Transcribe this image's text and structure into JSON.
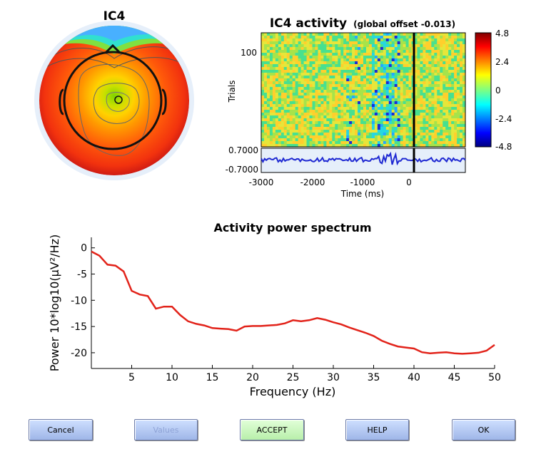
{
  "topo": {
    "title": "IC4"
  },
  "erp": {
    "title_main": "IC4 activity",
    "title_sub": "(global offset -0.013)",
    "ylabel": "Trials",
    "trial_tick": "100",
    "trial_tick_bottom": "0.7000",
    "trace_tick_top": "0.7000",
    "trace_tick_bottom": "-0.7000",
    "xlabel": "Time (ms)",
    "xticks": [
      "-3000",
      "-2000",
      "-1000",
      "0"
    ]
  },
  "colorbar": {
    "ticks": [
      "4.8",
      "2.4",
      "0",
      "-2.4",
      "-4.8"
    ]
  },
  "chart_data": {
    "type": "line",
    "title": "Activity power spectrum",
    "xlabel": "Frequency (Hz)",
    "ylabel": "Power 10*log10(µV²/Hz)",
    "xlim": [
      0,
      50
    ],
    "ylim": [
      -23,
      2
    ],
    "xticks": [
      "5",
      "10",
      "15",
      "20",
      "25",
      "30",
      "35",
      "40",
      "45",
      "50"
    ],
    "yticks": [
      "0",
      "-5",
      "-10",
      "-15",
      "-20"
    ],
    "color": "#e2231a",
    "x": [
      0,
      1,
      2,
      3,
      4,
      5,
      6,
      7,
      8,
      9,
      10,
      11,
      12,
      13,
      14,
      15,
      16,
      17,
      18,
      19,
      20,
      21,
      22,
      23,
      24,
      25,
      26,
      27,
      28,
      29,
      30,
      31,
      32,
      33,
      34,
      35,
      36,
      37,
      38,
      39,
      40,
      41,
      42,
      43,
      44,
      45,
      46,
      47,
      48,
      49,
      50
    ],
    "y": [
      -0.7,
      -1.5,
      -3.2,
      -3.4,
      -4.5,
      -8.2,
      -8.9,
      -9.2,
      -11.6,
      -11.2,
      -11.2,
      -12.8,
      -14.0,
      -14.5,
      -14.8,
      -15.3,
      -15.4,
      -15.5,
      -15.8,
      -15.0,
      -14.9,
      -14.9,
      -14.8,
      -14.7,
      -14.4,
      -13.8,
      -14.0,
      -13.8,
      -13.4,
      -13.7,
      -14.2,
      -14.6,
      -15.2,
      -15.7,
      -16.2,
      -16.8,
      -17.7,
      -18.3,
      -18.8,
      -19.0,
      -19.2,
      -19.9,
      -20.1,
      -20.0,
      -19.9,
      -20.1,
      -20.2,
      -20.1,
      -20.0,
      -19.6,
      -18.5
    ]
  },
  "buttons": {
    "cancel": "Cancel",
    "values": "Values",
    "accept": "ACCEPT",
    "help": "HELP",
    "ok": "OK"
  }
}
